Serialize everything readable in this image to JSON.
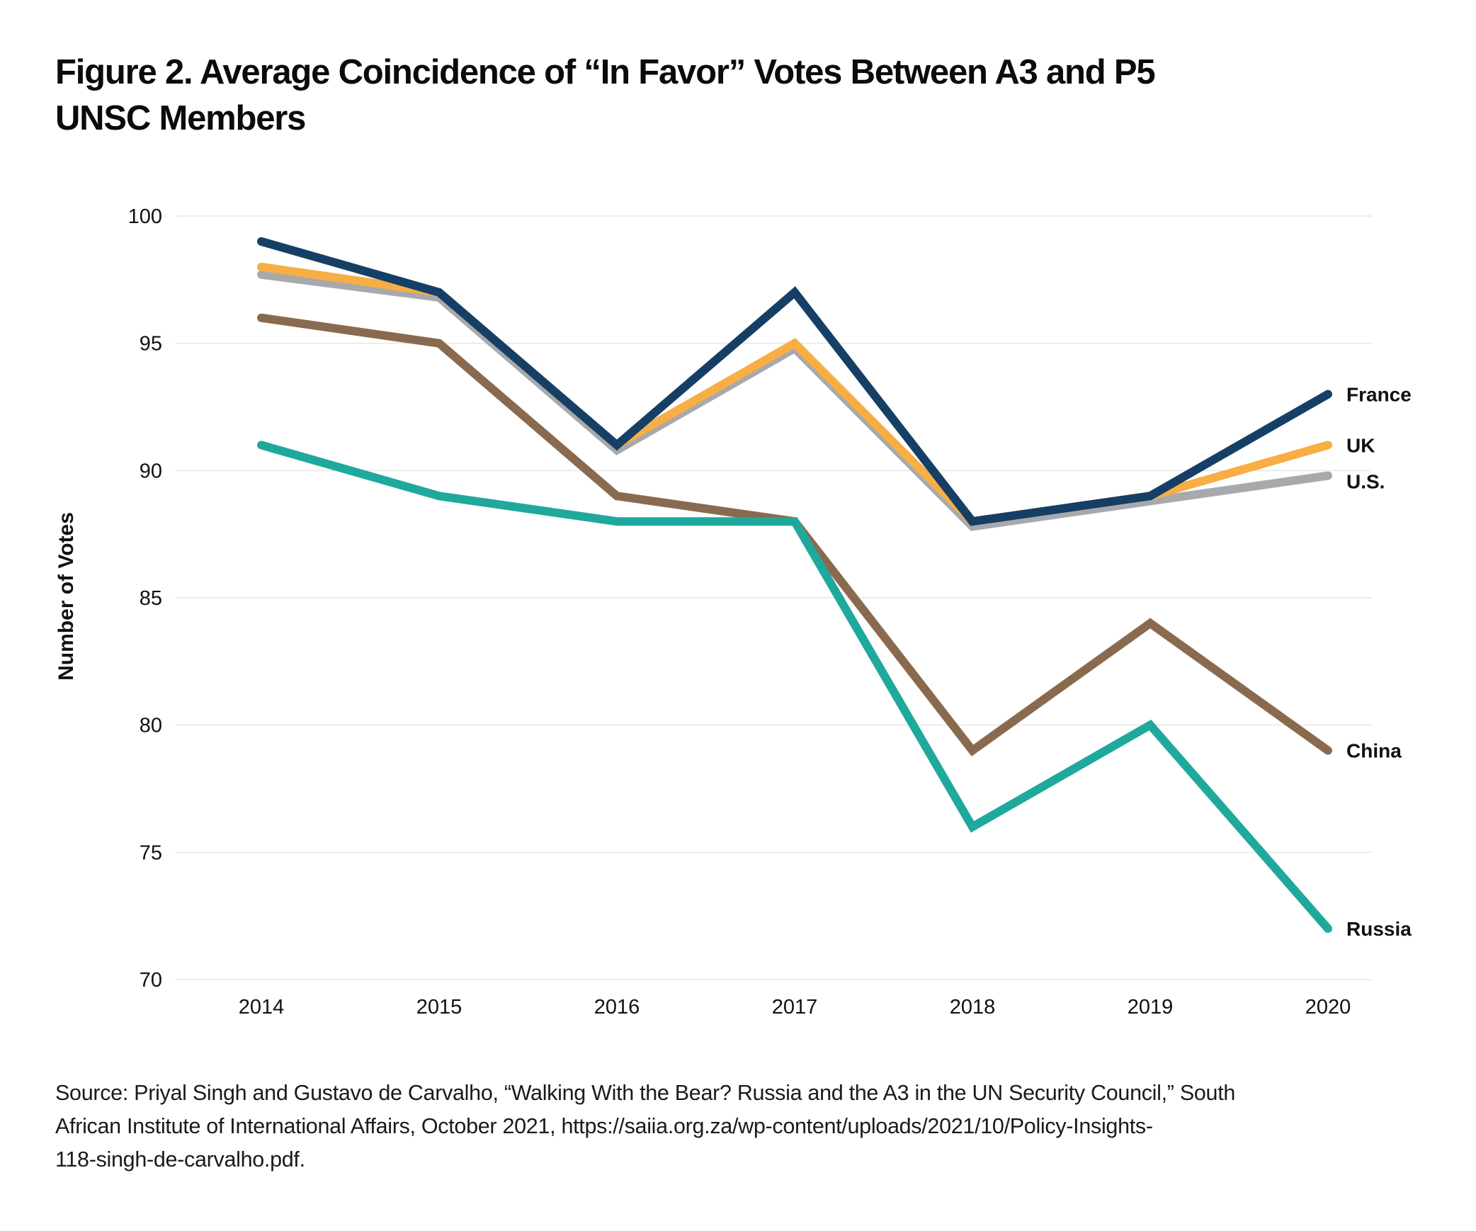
{
  "title_lines": [
    "Figure 2. Average Coincidence of “In Favor” Votes Between A3 and P5",
    "UNSC Members"
  ],
  "source_lines": [
    "Source: Priyal Singh and Gustavo de Carvalho, “Walking With the Bear? Russia and the A3 in the UN Security Council,” South",
    "African Institute of International Affairs, October 2021, https://saiia.org.za/wp-content/uploads/2021/10/Policy-Insights-",
    "118-singh-de-carvalho.pdf."
  ],
  "chart_data": {
    "type": "line",
    "title": "Figure 2. Average Coincidence of “In Favor” Votes Between A3 and P5 UNSC Members",
    "xlabel": "",
    "ylabel": "Number of Votes",
    "x": [
      "2014",
      "2015",
      "2016",
      "2017",
      "2018",
      "2019",
      "2020"
    ],
    "ylim": [
      70,
      100
    ],
    "yticks": [
      "100",
      "95",
      "90",
      "85",
      "80",
      "75",
      "70"
    ],
    "grid": true,
    "legend": "direct labels at right end of lines",
    "series": [
      {
        "name": "China",
        "color": "#8a6a4f",
        "values": [
          96,
          95,
          89,
          88,
          79,
          84,
          79
        ]
      },
      {
        "name": "Russia",
        "color": "#1fa99c",
        "values": [
          91,
          89,
          88,
          88,
          76,
          80,
          72
        ]
      },
      {
        "name": "U.S.",
        "color": "#a7a9ac",
        "values": [
          97.7,
          96.8,
          90.8,
          94.8,
          87.8,
          88.8,
          89.8
        ]
      },
      {
        "name": "UK",
        "color": "#f6ae45",
        "values": [
          98,
          97,
          91,
          95,
          88,
          89,
          91
        ]
      },
      {
        "name": "France",
        "color": "#163f66",
        "values": [
          99,
          97,
          91,
          97,
          88,
          89,
          93
        ]
      }
    ]
  }
}
